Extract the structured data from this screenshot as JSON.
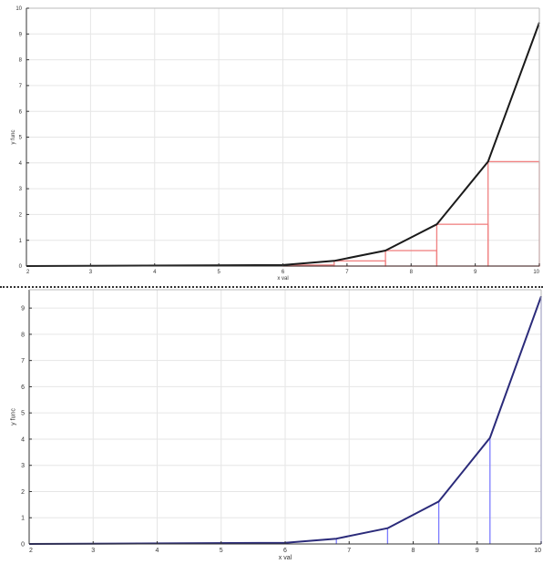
{
  "heading": "",
  "chart_data": [
    {
      "type": "line",
      "title": "",
      "xlabel": "x val",
      "ylabel": "y func",
      "xlim": [
        2,
        10
      ],
      "ylim": [
        0,
        10
      ],
      "xticks": [
        2,
        3,
        4,
        5,
        6,
        7,
        8,
        9,
        10
      ],
      "yticks": [
        0,
        1,
        2,
        3,
        4,
        5,
        6,
        7,
        8,
        9,
        10
      ],
      "grid": true,
      "series": [
        {
          "color": "#1a1a1a",
          "x": [
            2,
            6,
            6.8,
            7.6,
            8.4,
            9.2,
            10
          ],
          "y": [
            0.0,
            0.04,
            0.2,
            0.6,
            1.62,
            4.05,
            9.45
          ]
        }
      ],
      "rectangles": {
        "color": "#f08080",
        "x_left": [
          6,
          6.8,
          7.6,
          8.4,
          9.2
        ],
        "width": 0.8,
        "heights": [
          0.04,
          0.2,
          0.6,
          1.62,
          4.05
        ]
      }
    },
    {
      "type": "line",
      "title": "",
      "xlabel": "x val",
      "ylabel": "y func",
      "xlim": [
        2,
        10
      ],
      "ylim": [
        0,
        9.7
      ],
      "xticks": [
        2,
        3,
        4,
        5,
        6,
        7,
        8,
        9,
        10
      ],
      "yticks": [
        0,
        1,
        2,
        3,
        4,
        5,
        6,
        7,
        8,
        9
      ],
      "grid": true,
      "series": [
        {
          "color": "#2b2b7a",
          "x": [
            2,
            6,
            6.8,
            7.6,
            8.4,
            9.2,
            10
          ],
          "y": [
            0.0,
            0.04,
            0.2,
            0.6,
            1.62,
            4.05,
            9.45
          ]
        }
      ],
      "stems": {
        "color": "#7b7bff",
        "x": [
          6,
          6.8,
          7.6,
          8.4,
          9.2,
          10
        ],
        "y": [
          0.04,
          0.2,
          0.6,
          1.62,
          4.05,
          9.45
        ]
      }
    }
  ]
}
